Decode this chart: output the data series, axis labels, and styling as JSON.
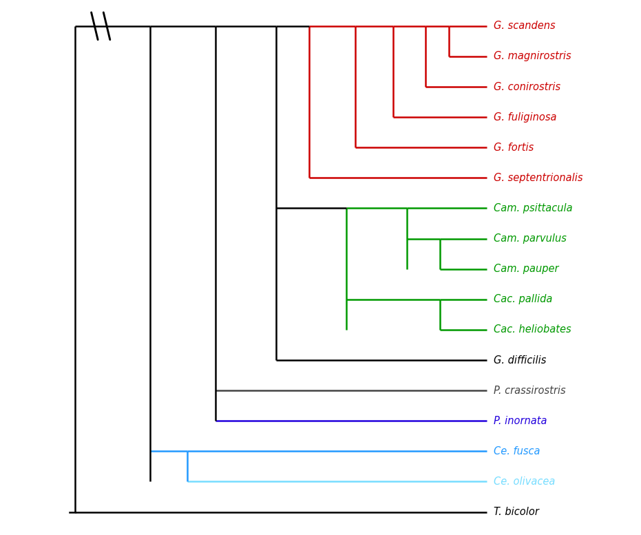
{
  "taxa": [
    "G. scandens",
    "G. magnirostris",
    "G. conirostris",
    "G. fuliginosa",
    "G. fortis",
    "G. septentrionalis",
    "Cam. psittacula",
    "Cam. parvulus",
    "Cam. pauper",
    "Cac. pallida",
    "Cac. heliobates",
    "G. difficilis",
    "P. crassirostris",
    "P. inornata",
    "Ce. fusca",
    "Ce. olivacea",
    "T. bicolor"
  ],
  "taxa_colors": [
    "#cc0000",
    "#cc0000",
    "#cc0000",
    "#cc0000",
    "#cc0000",
    "#cc0000",
    "#009900",
    "#009900",
    "#009900",
    "#009900",
    "#009900",
    "#000000",
    "#444444",
    "#2200dd",
    "#2299ff",
    "#77ddff",
    "#000000"
  ],
  "background_color": "#ffffff",
  "lw": 1.8
}
